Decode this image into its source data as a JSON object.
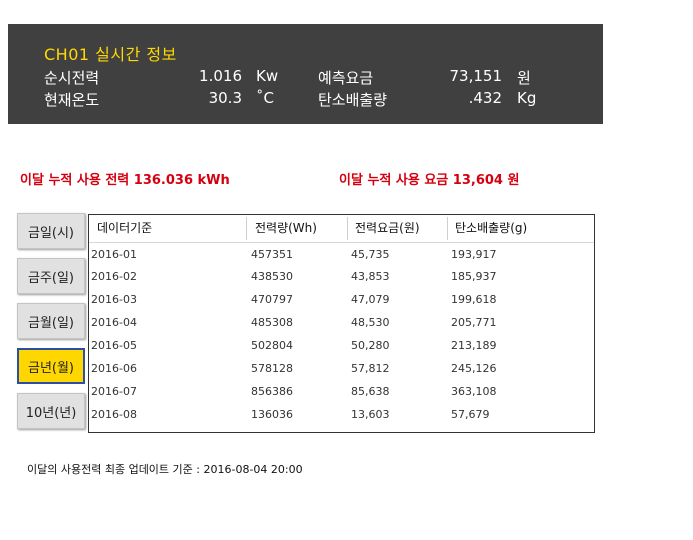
{
  "realtime": {
    "title": "CH01  실시간 정보",
    "power_label": "순시전력",
    "power_value": "1.016",
    "power_unit": "Kw",
    "fee_label": "예측요금",
    "fee_value": "73,151",
    "fee_unit": "원",
    "temp_label": "현재온도",
    "temp_value": "30.3",
    "temp_unit": "˚C",
    "carbon_label": "탄소배출량",
    "carbon_value": ".432",
    "carbon_unit": "Kg"
  },
  "summary": {
    "power_text": "이달 누적 사용 전력  136.036 kWh",
    "fee_text": "이달 누적 사용 요금  13,604 원"
  },
  "period_buttons": [
    {
      "label": "금일(시)",
      "active": false
    },
    {
      "label": "금주(일)",
      "active": false
    },
    {
      "label": "금월(일)",
      "active": false
    },
    {
      "label": "금년(월)",
      "active": true
    },
    {
      "label": "10년(년)",
      "active": false
    }
  ],
  "table": {
    "columns": [
      "데이터기준",
      "전력량(Wh)",
      "전력요금(원)",
      "탄소배출량(g)"
    ],
    "rows": [
      [
        "2016-01",
        "457351",
        "45,735",
        "193,917"
      ],
      [
        "2016-02",
        "438530",
        "43,853",
        "185,937"
      ],
      [
        "2016-03",
        "470797",
        "47,079",
        "199,618"
      ],
      [
        "2016-04",
        "485308",
        "48,530",
        "205,771"
      ],
      [
        "2016-05",
        "502804",
        "50,280",
        "213,189"
      ],
      [
        "2016-06",
        "578128",
        "57,812",
        "245,126"
      ],
      [
        "2016-07",
        "856386",
        "85,638",
        "363,108"
      ],
      [
        "2016-08",
        "136036",
        "13,603",
        "57,679"
      ]
    ]
  },
  "footer": {
    "note": "이달의 사용전력 최종 업데이트 기준 :  2016-08-04 20:00"
  },
  "colors": {
    "panel_bg": "#404040",
    "title_yellow": "#ffd900",
    "summary_red": "#d4000f",
    "active_button": "#ffd700"
  }
}
